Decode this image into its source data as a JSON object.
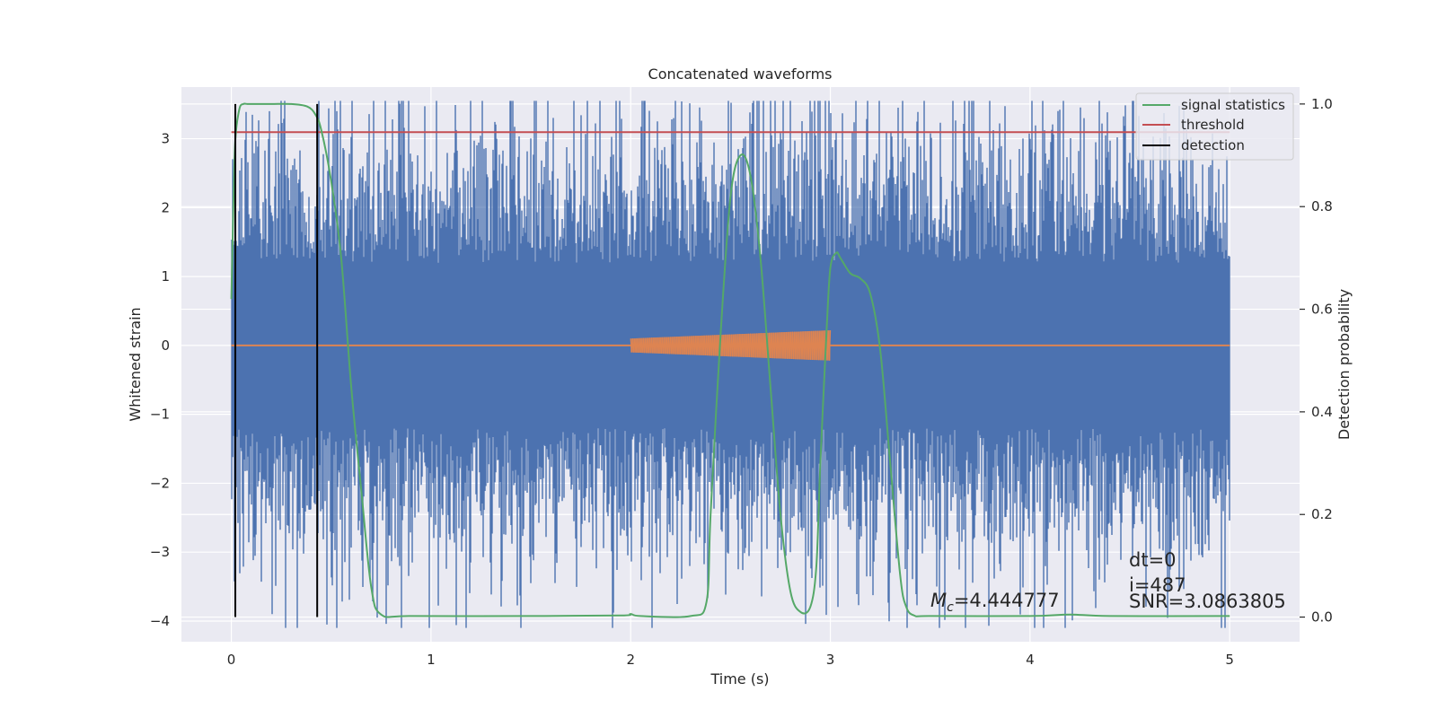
{
  "chart_data": {
    "type": "line",
    "title": "Concatenated waveforms",
    "xlabel": "Time (s)",
    "ylabel": "Whitened strain",
    "y2label": "Detection probability",
    "xlim": [
      -0.25,
      5.35
    ],
    "ylim": [
      -4.3,
      3.75
    ],
    "y2lim": [
      -0.048,
      1.033
    ],
    "xticks": [
      0,
      1,
      2,
      3,
      4,
      5
    ],
    "yticks": [
      -4,
      -3,
      -2,
      -1,
      0,
      1,
      2,
      3
    ],
    "y2ticks": [
      0.0,
      0.2,
      0.4,
      0.6,
      0.8,
      1.0
    ],
    "xtick_labels": [
      "0",
      "1",
      "2",
      "3",
      "4",
      "5"
    ],
    "ytick_labels": [
      "−4",
      "−3",
      "−2",
      "−1",
      "0",
      "1",
      "2",
      "3"
    ],
    "y2tick_labels": [
      "0.0",
      "0.2",
      "0.4",
      "0.6",
      "0.8",
      "1.0"
    ],
    "grid": true,
    "legend_position": "top-right",
    "colors": {
      "noise": "#4c72b0",
      "injection": "#dd8452",
      "signal_statistics": "#55a868",
      "threshold": "#c44e52",
      "detection": "#000000",
      "plot_bg": "#eaeaf2",
      "grid": "#ffffff"
    },
    "noise_series": {
      "x_range": [
        0,
        5
      ],
      "typical_amplitude": 1.2,
      "peaks": [
        {
          "x": 0.19,
          "y": 3.4
        },
        {
          "x": 0.53,
          "y": 3.4
        },
        {
          "x": 1.33,
          "y": 3.0
        },
        {
          "x": 3.11,
          "y": 3.1
        },
        {
          "x": 3.34,
          "y": 3.45
        },
        {
          "x": 4.38,
          "y": 3.05
        },
        {
          "x": 0.73,
          "y": -3.95
        },
        {
          "x": 1.5,
          "y": -3.45
        },
        {
          "x": 1.2,
          "y": -3.15
        },
        {
          "x": 3.3,
          "y": -3.3
        },
        {
          "x": 3.2,
          "y": -3.35
        },
        {
          "x": 4.65,
          "y": -2.95
        },
        {
          "x": 4.08,
          "y": -2.85
        },
        {
          "x": 2.8,
          "y": -3.0
        }
      ]
    },
    "injection_series": {
      "name": "",
      "x_start": 2.0,
      "x_end": 3.0,
      "amp_start": 0.1,
      "amp_end": 0.22
    },
    "series": [
      {
        "name": "signal statistics",
        "axis": "right",
        "x": [
          0.0,
          0.01,
          0.02,
          0.04,
          0.06,
          0.08,
          0.1,
          0.2,
          0.3,
          0.38,
          0.42,
          0.45,
          0.5,
          0.55,
          0.6,
          0.65,
          0.7,
          0.75,
          0.9,
          1.5,
          1.95,
          2.0,
          2.05,
          2.3,
          2.38,
          2.4,
          2.45,
          2.5,
          2.55,
          2.6,
          2.65,
          2.7,
          2.75,
          2.8,
          2.85,
          2.9,
          2.93,
          2.95,
          2.98,
          3.0,
          3.03,
          3.05,
          3.1,
          3.15,
          3.2,
          3.25,
          3.3,
          3.35,
          3.38,
          3.42,
          3.5,
          4.0,
          4.2,
          4.4,
          5.0
        ],
        "y": [
          0.62,
          0.8,
          0.93,
          0.99,
          1.0,
          1.0,
          1.0,
          1.0,
          1.0,
          0.995,
          0.98,
          0.95,
          0.85,
          0.7,
          0.45,
          0.25,
          0.06,
          0.005,
          0.002,
          0.002,
          0.003,
          0.006,
          0.002,
          0.002,
          0.03,
          0.2,
          0.55,
          0.82,
          0.9,
          0.86,
          0.7,
          0.45,
          0.2,
          0.05,
          0.01,
          0.02,
          0.1,
          0.3,
          0.55,
          0.68,
          0.71,
          0.7,
          0.67,
          0.66,
          0.63,
          0.52,
          0.3,
          0.08,
          0.02,
          0.003,
          0.002,
          0.002,
          0.005,
          0.002,
          0.002
        ]
      },
      {
        "name": "threshold",
        "axis": "right",
        "x": [
          0.0,
          5.0
        ],
        "y": [
          0.945,
          0.945
        ]
      },
      {
        "name": "detection",
        "axis": "right",
        "vlines": [
          0.02,
          0.43
        ],
        "y_range": [
          0.0,
          1.0
        ]
      }
    ],
    "legend": [
      "signal statistics",
      "threshold",
      "detection"
    ],
    "annotations": {
      "mc_prefix": "M",
      "mc_subscript": "c",
      "mc_value": "=4.444777",
      "dt": "dt=0",
      "i": "i=487",
      "snr": "SNR=3.0863805"
    }
  }
}
